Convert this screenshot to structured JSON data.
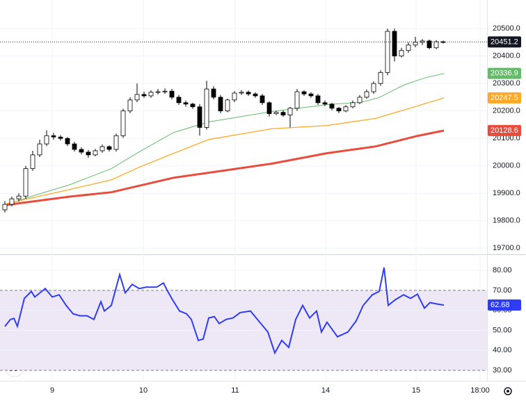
{
  "chart_data": [
    {
      "type": "candlestick",
      "open": [
        19840,
        19860,
        19880,
        19890,
        19990,
        20040,
        20080,
        20110,
        20105,
        20100,
        20080,
        20060,
        20050,
        20040,
        20055,
        20070,
        20060,
        20110,
        20200,
        20240,
        20260,
        20255,
        20268,
        20270,
        20272,
        20250,
        20230,
        20225,
        20215,
        20140,
        20280,
        20250,
        20200,
        20240,
        20265,
        20268,
        20262,
        20255,
        20230,
        20190,
        20195,
        20185,
        20210,
        20270,
        20262,
        20255,
        20230,
        20225,
        20210,
        20200,
        20215,
        20230,
        20250,
        20270,
        20300,
        20340,
        20490,
        20400,
        20420,
        20440,
        20450,
        20455,
        20430,
        20452
      ],
      "high": [
        19872,
        19888,
        19900,
        20000,
        20055,
        20095,
        20130,
        20120,
        20112,
        20105,
        20088,
        20068,
        20058,
        20062,
        20078,
        20075,
        20118,
        20208,
        20250,
        20300,
        20270,
        20275,
        20280,
        20282,
        20280,
        20258,
        20238,
        20230,
        20225,
        20310,
        20290,
        20258,
        20245,
        20272,
        20276,
        20275,
        20268,
        20262,
        20235,
        20200,
        20202,
        20215,
        20280,
        20275,
        20268,
        20262,
        20238,
        20230,
        20215,
        20222,
        20238,
        20258,
        20278,
        20308,
        20348,
        20500,
        20500,
        20430,
        20450,
        20470,
        20462,
        20460,
        20458,
        20456
      ],
      "low": [
        19830,
        19852,
        19870,
        19880,
        19982,
        20032,
        20072,
        20095,
        20092,
        20072,
        20052,
        20042,
        20030,
        20035,
        20048,
        20052,
        20052,
        20102,
        20192,
        20232,
        20248,
        20248,
        20260,
        20262,
        20242,
        20222,
        20216,
        20208,
        20110,
        20132,
        20242,
        20192,
        20195,
        20232,
        20258,
        20255,
        20248,
        20222,
        20180,
        20185,
        20178,
        20140,
        20200,
        20255,
        20248,
        20222,
        20218,
        20202,
        20192,
        20195,
        20210,
        20225,
        20244,
        20262,
        20292,
        20330,
        20380,
        20395,
        20412,
        20432,
        20440,
        20425,
        20425,
        20446
      ],
      "close": [
        19860,
        19880,
        19890,
        19990,
        20040,
        20080,
        20110,
        20105,
        20100,
        20080,
        20060,
        20050,
        20040,
        20055,
        20070,
        20060,
        20110,
        20200,
        20240,
        20260,
        20255,
        20268,
        20270,
        20272,
        20250,
        20230,
        20225,
        20215,
        20140,
        20280,
        20250,
        20200,
        20240,
        20265,
        20268,
        20262,
        20255,
        20230,
        20190,
        20195,
        20185,
        20210,
        20270,
        20262,
        20255,
        20230,
        20225,
        20210,
        20200,
        20215,
        20230,
        20250,
        20270,
        20300,
        20340,
        20490,
        20400,
        20420,
        20440,
        20450,
        20455,
        20430,
        20452,
        20451.2
      ],
      "up_color": "#ffffff",
      "down_color": "#000000",
      "lines": [
        {
          "color": "#66bb6a",
          "width": 1,
          "x": [
            0.3,
            4.3,
            9.3,
            15.3,
            19.3,
            24.3,
            29.3,
            38.3,
            46.3,
            51.3,
            53.8,
            57.3,
            60.3,
            63.1
          ],
          "values": [
            19860,
            19893,
            19931,
            19990,
            20051,
            20122,
            20160,
            20198,
            20223,
            20232,
            20249,
            20294,
            20320,
            20336.9
          ]
        },
        {
          "color": "#ffa726",
          "width": 1.3,
          "x": [
            0.3,
            9.3,
            15.3,
            19.3,
            24.3,
            29.3,
            38.3,
            46.3,
            53.3,
            57.3,
            63.1
          ],
          "values": [
            19863,
            19914,
            19949,
            19995,
            20046,
            20096,
            20135,
            20147,
            20173,
            20203,
            20247.5
          ]
        },
        {
          "color": "#e74c3c",
          "width": 3,
          "x": [
            0.3,
            9.3,
            15.3,
            24.3,
            29.3,
            38.3,
            46.3,
            53.3,
            59.3,
            63.1
          ],
          "values": [
            19858,
            19888,
            19904,
            19957,
            19975,
            20008,
            20046,
            20071,
            20109,
            20128.6
          ]
        }
      ],
      "xlim": [
        -0.7,
        69.3
      ],
      "ylim": [
        19678,
        20604
      ],
      "yticks": [
        {
          "value": 19700,
          "label": "19700.0"
        },
        {
          "value": 19800,
          "label": "19800.0"
        },
        {
          "value": 19900,
          "label": "19900.0"
        },
        {
          "value": 20000,
          "label": "20000.0"
        },
        {
          "value": 20100,
          "label": "20100.0"
        },
        {
          "value": 20200,
          "label": "20200.0"
        },
        {
          "value": 20300,
          "label": "20300.0"
        },
        {
          "value": 20400,
          "label": "20400.0"
        },
        {
          "value": 20500,
          "label": "20500.0"
        }
      ],
      "xticks": [
        {
          "value": 6.8,
          "label": "9"
        },
        {
          "value": 19.9,
          "label": "10"
        },
        {
          "value": 33.1,
          "label": "11"
        },
        {
          "value": 46.1,
          "label": "14"
        },
        {
          "value": 59.1,
          "label": "15"
        },
        {
          "value": 68.3,
          "label": "18:00"
        }
      ]
    },
    {
      "type": "line",
      "color": "#2f3cf5",
      "x": [
        0,
        0.8,
        1.3,
        1.8,
        2.8,
        3.8,
        4.3,
        5.3,
        5.8,
        6.8,
        7.8,
        8.8,
        9.8,
        10.8,
        11.8,
        12.8,
        13.8,
        14.3,
        15.3,
        16.5,
        17.3,
        18.3,
        19.3,
        20.3,
        21.8,
        22.8,
        23.3,
        24.1,
        25.1,
        26.1,
        26.8,
        27.8,
        28.5,
        29.3,
        30.1,
        30.8,
        31.8,
        32.8,
        33.8,
        35.3,
        36.3,
        37.8,
        38.8,
        39.8,
        40.8,
        41.8,
        42.8,
        43.8,
        44.8,
        45.5,
        46.3,
        47.8,
        49.3,
        50.5,
        51.5,
        52.8,
        53.8,
        54.5,
        55.1,
        56.1,
        57.3,
        58.3,
        59.3,
        60.3,
        61.1,
        62.1,
        63.1
      ],
      "values": [
        52,
        55.5,
        56,
        52,
        66,
        69.5,
        66.7,
        69.5,
        70.9,
        66.7,
        67.8,
        62.5,
        58.3,
        57.3,
        57.3,
        55.5,
        64.3,
        59.7,
        62.5,
        77.9,
        68.8,
        73,
        70.9,
        71.6,
        71.6,
        73.7,
        70.2,
        65.3,
        59.7,
        58.3,
        55.5,
        45,
        45.7,
        56.2,
        56.9,
        53.4,
        55.5,
        56.2,
        58.9,
        59.7,
        55.5,
        49.2,
        38.7,
        45,
        41.5,
        55.5,
        62.5,
        56.2,
        59.7,
        49.2,
        54.1,
        46.8,
        49.2,
        54.8,
        62.5,
        67.8,
        69.5,
        81.4,
        62.5,
        65.3,
        67.8,
        66,
        68.1,
        61.1,
        63.9,
        63.2,
        62.68
      ],
      "band": [
        30,
        70
      ],
      "band_color": "#ede7f6",
      "xlim": [
        -0.7,
        69.3
      ],
      "ylim": [
        24.8,
        87.7
      ],
      "yticks": [
        {
          "value": 30,
          "label": "30.00"
        },
        {
          "value": 40,
          "label": "40.00"
        },
        {
          "value": 50,
          "label": "50.00"
        },
        {
          "value": 60,
          "label": "60.00"
        },
        {
          "value": 70,
          "label": "70.00"
        },
        {
          "value": 80,
          "label": "80.00"
        }
      ]
    }
  ]
}
